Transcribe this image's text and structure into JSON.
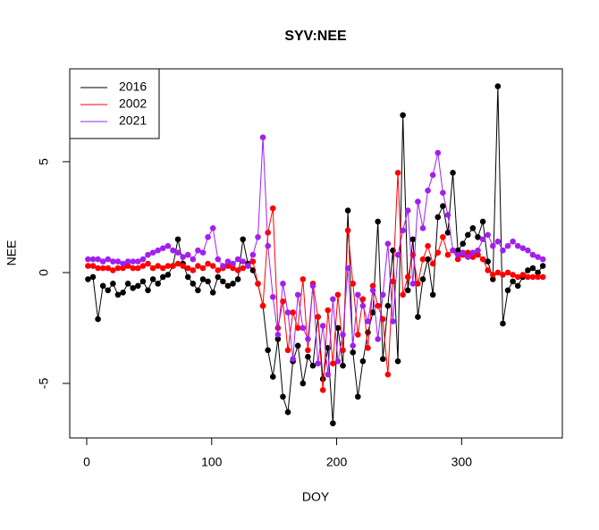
{
  "chart_data": {
    "type": "line",
    "title": "SYV:NEE",
    "x_label": "DOY",
    "y_label": "NEE",
    "x": [
      1,
      5,
      9,
      13,
      17,
      21,
      25,
      29,
      33,
      37,
      41,
      45,
      49,
      53,
      57,
      61,
      65,
      69,
      73,
      77,
      81,
      85,
      89,
      93,
      97,
      101,
      105,
      109,
      113,
      117,
      121,
      125,
      129,
      133,
      137,
      141,
      145,
      149,
      153,
      157,
      161,
      165,
      169,
      173,
      177,
      181,
      185,
      189,
      193,
      197,
      201,
      205,
      209,
      213,
      217,
      221,
      225,
      229,
      233,
      237,
      241,
      245,
      249,
      253,
      257,
      261,
      265,
      269,
      273,
      277,
      281,
      285,
      289,
      293,
      297,
      301,
      305,
      309,
      313,
      317,
      321,
      325,
      329,
      333,
      337,
      341,
      345,
      349,
      353,
      357,
      361,
      365
    ],
    "series": [
      {
        "name": "2016",
        "color": "#000000",
        "values": [
          -0.3,
          -0.2,
          -2.1,
          -0.6,
          -0.8,
          -0.5,
          -1.0,
          -0.9,
          -0.5,
          -0.7,
          -0.6,
          -0.4,
          -0.8,
          -0.3,
          -0.5,
          -0.2,
          -0.1,
          0.3,
          1.5,
          0.4,
          -0.2,
          -0.5,
          -0.8,
          -0.3,
          -0.4,
          -0.9,
          -0.2,
          -0.4,
          -0.6,
          -0.5,
          -0.3,
          1.5,
          0.4,
          0.1,
          -0.5,
          -1.5,
          -3.5,
          -4.7,
          -3.0,
          -5.6,
          -6.3,
          -4.0,
          -3.3,
          -5.0,
          -3.8,
          -4.2,
          -2.0,
          -4.8,
          -3.4,
          -6.8,
          -2.5,
          -4.2,
          2.8,
          -3.6,
          -5.6,
          -4.0,
          -2.7,
          -1.8,
          2.3,
          -3.9,
          -1.5,
          1.0,
          -4.0,
          7.1,
          -0.8,
          1.5,
          -2.0,
          -0.3,
          0.6,
          -1.0,
          2.5,
          3.0,
          1.8,
          4.5,
          1.0,
          1.3,
          1.7,
          2.0,
          1.6,
          2.3,
          0.5,
          -0.3,
          8.4,
          -2.3,
          -0.8,
          -0.4,
          -0.6,
          -0.2,
          0.1,
          0.2,
          0.0,
          0.3
        ]
      },
      {
        "name": "2002",
        "color": "#ff0000",
        "values": [
          0.3,
          0.3,
          0.2,
          0.2,
          0.2,
          0.1,
          0.2,
          0.2,
          0.3,
          0.2,
          0.2,
          0.3,
          0.4,
          0.2,
          0.3,
          0.2,
          0.3,
          0.3,
          0.4,
          0.3,
          0.2,
          0.1,
          0.3,
          0.2,
          0.4,
          0.3,
          0.1,
          0.2,
          0.3,
          0.2,
          0.1,
          0.2,
          0.3,
          0.5,
          -0.5,
          -1.5,
          1.8,
          2.9,
          -2.5,
          -1.3,
          -3.5,
          -1.8,
          -2.5,
          -0.3,
          -3.5,
          -0.5,
          -2.0,
          -5.3,
          -1.7,
          -4.1,
          -1.0,
          -3.5,
          1.9,
          -0.5,
          -2.8,
          -1.2,
          -3.4,
          -0.6,
          -1.5,
          -2.1,
          -4.6,
          -0.4,
          4.5,
          -1.0,
          -0.2,
          0.8,
          -0.5,
          0.6,
          1.2,
          0.4,
          0.9,
          1.6,
          0.8,
          1.0,
          0.6,
          0.8,
          0.9,
          0.7,
          0.8,
          0.6,
          0.1,
          -0.1,
          0.0,
          -0.1,
          0.0,
          -0.1,
          -0.2,
          -0.1,
          -0.2,
          -0.2,
          -0.2,
          -0.2
        ]
      },
      {
        "name": "2021",
        "color": "#a020f0",
        "values": [
          0.6,
          0.6,
          0.6,
          0.5,
          0.6,
          0.5,
          0.5,
          0.4,
          0.5,
          0.5,
          0.5,
          0.6,
          0.8,
          0.9,
          1.0,
          1.1,
          1.2,
          1.0,
          0.9,
          0.7,
          0.8,
          0.6,
          1.0,
          0.9,
          1.6,
          2.0,
          0.6,
          0.3,
          0.5,
          0.4,
          0.6,
          0.5,
          0.3,
          0.8,
          1.6,
          6.1,
          1.2,
          -1.1,
          -2.8,
          -0.5,
          -1.8,
          -3.9,
          -1.0,
          -2.5,
          -3.0,
          -0.6,
          -4.1,
          -2.4,
          -4.6,
          -1.2,
          -4.0,
          -2.8,
          0.2,
          -3.3,
          -1.0,
          -1.5,
          -2.2,
          -0.8,
          -3.0,
          -1.0,
          1.3,
          -2.2,
          0.8,
          1.9,
          2.8,
          -0.5,
          3.2,
          2.0,
          3.7,
          4.4,
          5.4,
          3.6,
          2.6,
          1.0,
          0.8,
          0.9,
          0.7,
          0.9,
          1.0,
          1.5,
          1.7,
          1.2,
          1.4,
          1.0,
          1.2,
          1.4,
          1.2,
          1.1,
          1.0,
          0.8,
          0.7,
          0.6
        ]
      }
    ],
    "xlim": [
      -13.6,
      380.6
    ],
    "ylim": [
      -7.46,
      9.19
    ],
    "xticks": [
      0,
      100,
      200,
      300
    ],
    "yticks": [
      -5,
      0,
      5
    ],
    "legend": "topleft"
  }
}
